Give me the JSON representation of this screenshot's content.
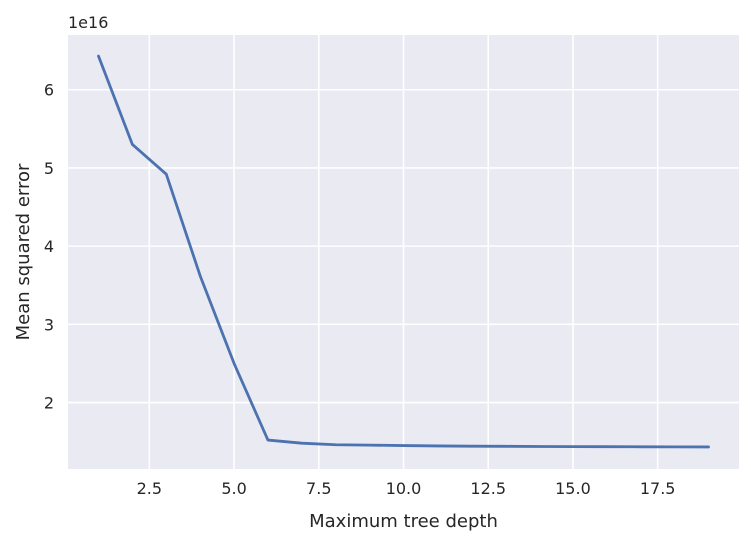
{
  "chart_data": {
    "type": "line",
    "title": "",
    "xlabel": "Maximum tree depth",
    "ylabel": "Mean squared error",
    "y_offset_label": "1e16",
    "y_scale_factor": 1e+16,
    "xlim": [
      0.1,
      19.9
    ],
    "ylim": [
      1.15,
      6.7
    ],
    "x_ticks": [
      2.5,
      5.0,
      7.5,
      10.0,
      12.5,
      15.0,
      17.5
    ],
    "x_tick_labels": [
      "2.5",
      "5.0",
      "7.5",
      "10.0",
      "12.5",
      "15.0",
      "17.5"
    ],
    "y_ticks": [
      2,
      3,
      4,
      5,
      6
    ],
    "y_tick_labels": [
      "2",
      "3",
      "4",
      "5",
      "6"
    ],
    "grid": true,
    "background_color": "#eaeaf2",
    "grid_color": "#ffffff",
    "line_color": "#4c72b0",
    "series": [
      {
        "x": [
          1,
          2,
          3,
          4,
          5,
          6,
          7,
          8,
          9,
          10,
          11,
          12,
          13,
          14,
          15,
          16,
          17,
          18,
          19
        ],
        "values": [
          6.43,
          5.3,
          4.92,
          3.62,
          2.5,
          1.52,
          1.48,
          1.46,
          1.455,
          1.45,
          1.445,
          1.442,
          1.44,
          1.438,
          1.436,
          1.435,
          1.434,
          1.433,
          1.432
        ]
      }
    ]
  }
}
